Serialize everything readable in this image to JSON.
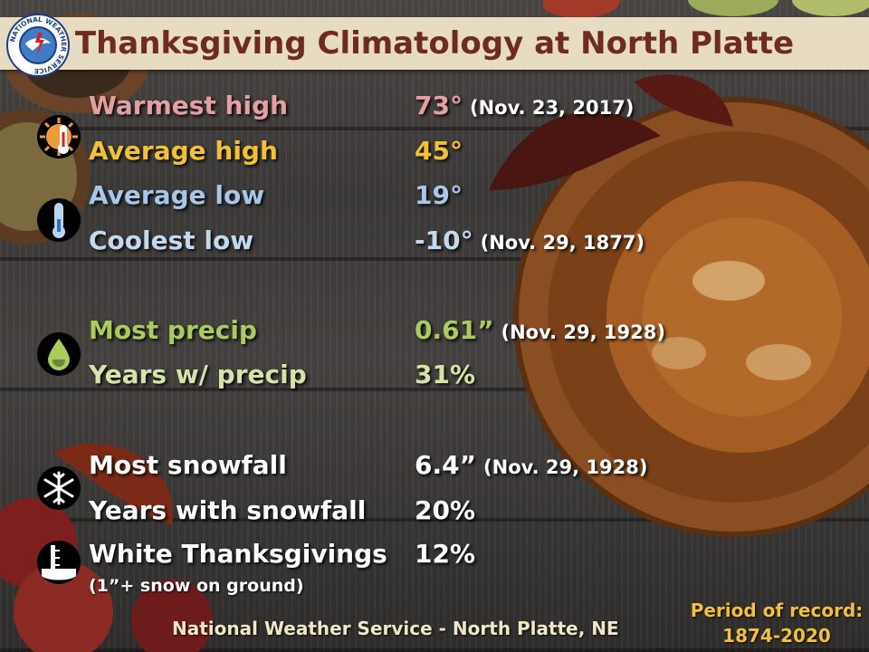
{
  "title": "Thanksgiving Climatology at North Platte",
  "logo": {
    "icon": "nws-logo",
    "ring_text": "NATIONAL WEATHER SERVICE"
  },
  "colors": {
    "warm": "#e4a0a0",
    "average_high": "#f2c232",
    "cool": "#a7c6e8",
    "coolest": "#c3d9ee",
    "precip": "#a9cc5a",
    "precip_years": "#d5e2a8",
    "white": "#ffffff",
    "title": "#6e2b22"
  },
  "temperature": {
    "icon_hot": "hot-thermometer-icon",
    "icon_cold": "cold-thermometer-icon",
    "warmest_high": {
      "label": "Warmest high",
      "value": "73°",
      "date": "(Nov. 23, 2017)"
    },
    "average_high": {
      "label": "Average high",
      "value": "45°"
    },
    "average_low": {
      "label": "Average low",
      "value": "19°"
    },
    "coolest_low": {
      "label": "Coolest low",
      "value": "-10°",
      "date": "(Nov. 29, 1877)"
    }
  },
  "precip": {
    "icon": "raindrop-icon",
    "most_precip": {
      "label": "Most precip",
      "value": "0.61”",
      "date": "(Nov. 29, 1928)"
    },
    "years_with_precip": {
      "label": "Years w/ precip",
      "value": "31%"
    }
  },
  "snow": {
    "icon_snow": "snowflake-icon",
    "icon_depth": "snow-depth-gauge-icon",
    "most_snowfall": {
      "label": "Most snowfall",
      "value": "6.4”",
      "date": "(Nov. 29, 1928)"
    },
    "years_with_snowfall": {
      "label": "Years with snowfall",
      "value": "20%"
    },
    "white_thanksgivings": {
      "label": "White Thanksgivings",
      "value": "12%",
      "note": "(1”+ snow on ground)"
    }
  },
  "footer": "National Weather Service - North Platte, NE",
  "period_of_record": {
    "line1": "Period of record:",
    "line2": "1874-2020"
  }
}
